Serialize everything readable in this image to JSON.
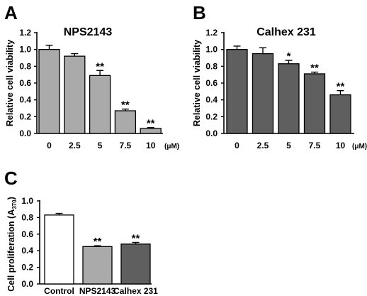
{
  "chart_data": [
    {
      "type": "bar",
      "panel_label": "A",
      "title": "NPS2143",
      "ylabel": "Relative cell viability",
      "xunit": "(μM)",
      "categories": [
        "0",
        "2.5",
        "5",
        "7.5",
        "10"
      ],
      "values": [
        1.0,
        0.92,
        0.69,
        0.27,
        0.06
      ],
      "errors": [
        0.05,
        0.03,
        0.06,
        0.02,
        0.01
      ],
      "significance": [
        "",
        "",
        "**",
        "**",
        "**"
      ],
      "ylim": [
        0,
        1.2
      ],
      "yticks": [
        "0.0",
        "0.2",
        "0.4",
        "0.6",
        "0.8",
        "1.0",
        "1.2"
      ],
      "bar_color": "#aaaaaa"
    },
    {
      "type": "bar",
      "panel_label": "B",
      "title": "Calhex 231",
      "ylabel": "Relative cell viability",
      "xunit": "(μM)",
      "categories": [
        "0",
        "2.5",
        "5",
        "7.5",
        "10"
      ],
      "values": [
        1.0,
        0.95,
        0.83,
        0.71,
        0.46
      ],
      "errors": [
        0.04,
        0.07,
        0.04,
        0.02,
        0.05
      ],
      "significance": [
        "",
        "",
        "*",
        "**",
        "**"
      ],
      "ylim": [
        0,
        1.2
      ],
      "yticks": [
        "0.0",
        "0.2",
        "0.4",
        "0.6",
        "0.8",
        "1.0",
        "1.2"
      ],
      "bar_color": "#5f5f5f"
    },
    {
      "type": "bar",
      "panel_label": "C",
      "title": "",
      "ylabel": "Cell proliferation (A370)",
      "categories": [
        "Control",
        "NPS2143",
        "Calhex 231"
      ],
      "values": [
        0.83,
        0.45,
        0.48
      ],
      "errors": [
        0.02,
        0.01,
        0.02
      ],
      "significance": [
        "",
        "**",
        "**"
      ],
      "ylim": [
        0,
        1.0
      ],
      "yticks": [
        "0.0",
        "0.2",
        "0.4",
        "0.6",
        "0.8",
        "1.0"
      ],
      "bar_colors": [
        "#ffffff",
        "#aaaaaa",
        "#5f5f5f"
      ]
    }
  ]
}
